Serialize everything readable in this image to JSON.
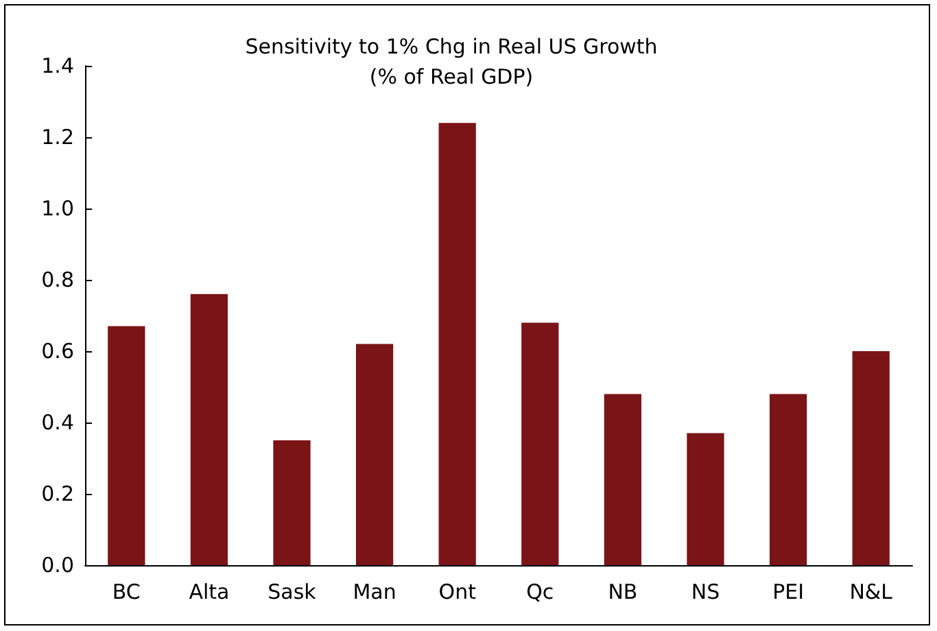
{
  "chart_data": {
    "type": "bar",
    "title": "Sensitivity to 1% Chg in Real US Growth\n(% of Real GDP)",
    "categories": [
      "BC",
      "Alta",
      "Sask",
      "Man",
      "Ont",
      "Qc",
      "NB",
      "NS",
      "PEI",
      "N&L"
    ],
    "values": [
      0.67,
      0.76,
      0.35,
      0.62,
      1.24,
      0.68,
      0.48,
      0.37,
      0.48,
      0.6
    ],
    "color": "#7b1416",
    "ylim": [
      0,
      1.4
    ],
    "yticks": [
      {
        "value": 0,
        "label": "0.0"
      },
      {
        "value": 0.2,
        "label": "0.2"
      },
      {
        "value": 0.4,
        "label": "0.4"
      },
      {
        "value": 0.6,
        "label": "0.6"
      },
      {
        "value": 0.8,
        "label": "0.8"
      },
      {
        "value": 1.0,
        "label": "1.0"
      },
      {
        "value": 1.2,
        "label": "1.2"
      },
      {
        "value": 1.4,
        "label": "1.4"
      }
    ],
    "grid": false
  }
}
